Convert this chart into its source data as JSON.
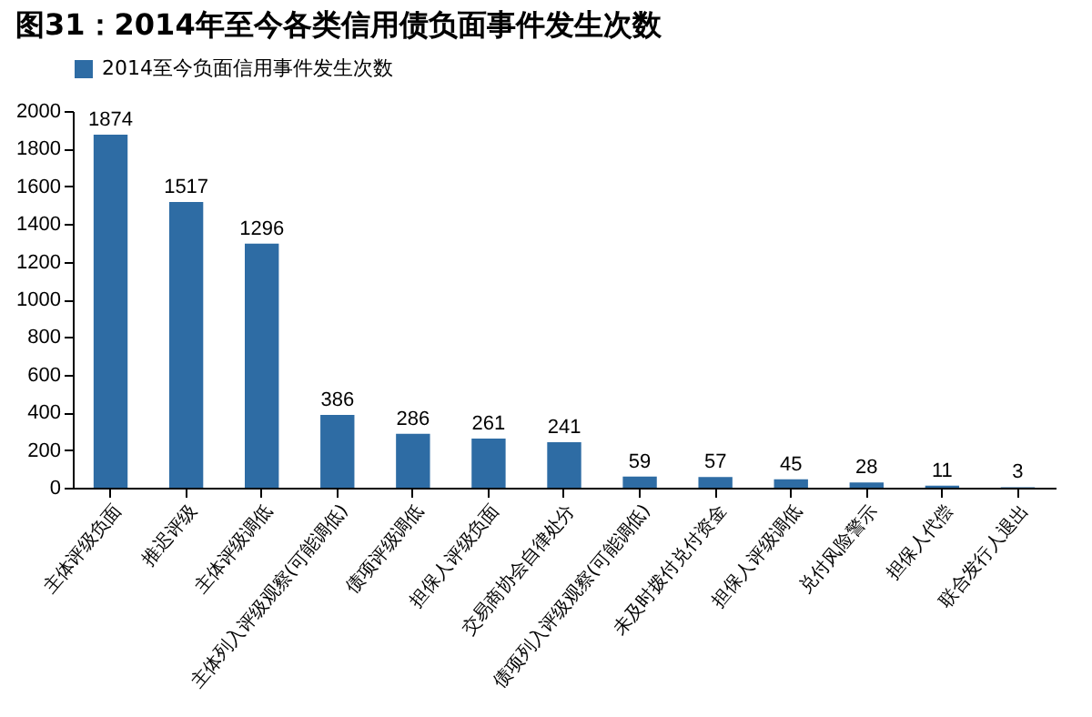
{
  "chart_data": {
    "type": "bar",
    "title": "图31：2014年至今各类信用债负面事件发生次数",
    "categories": [
      "主体评级负面",
      "推迟评级",
      "主体评级调低",
      "主体列入评级观察(可能调低)",
      "债项评级调低",
      "担保人评级负面",
      "交易商协会自律处分",
      "债项列入评级观察(可能调低)",
      "未及时拨付兑付资金",
      "担保人评级调低",
      "兑付风险警示",
      "担保人代偿",
      "联合发行人退出"
    ],
    "series": [
      {
        "name": "2014至今负面信用事件发生次数",
        "color": "#2e6ca4",
        "values": [
          1874,
          1517,
          1296,
          386,
          286,
          261,
          241,
          59,
          57,
          45,
          28,
          11,
          3
        ]
      }
    ],
    "ylim": [
      0,
      2000
    ],
    "yticks": [
      0,
      200,
      400,
      600,
      800,
      1000,
      1200,
      1400,
      1600,
      1800,
      2000
    ],
    "grid": false,
    "legend": "top",
    "data_labels": true
  }
}
